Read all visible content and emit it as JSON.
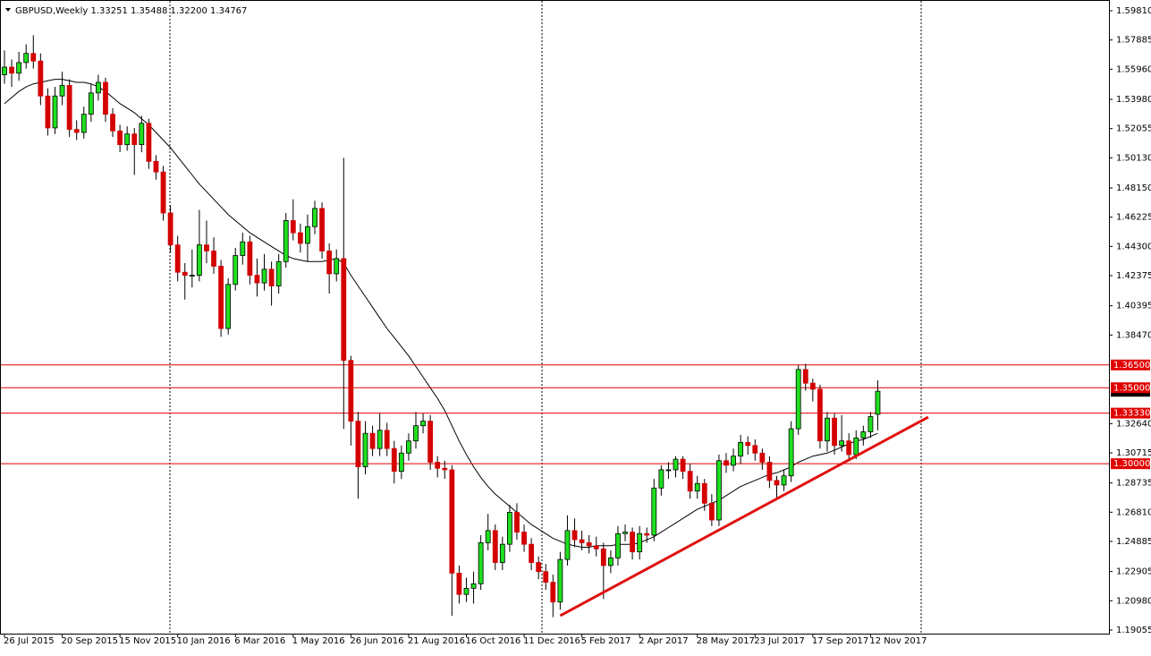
{
  "chart_data": {
    "type": "candlestick",
    "header": "GBPUSD,Weekly  1.33251 1.35488 1.32200 1.34767",
    "categories": [
      "26 Jul 2015",
      null,
      null,
      null,
      null,
      null,
      null,
      null,
      "20 Sep 2015",
      null,
      null,
      null,
      null,
      null,
      null,
      null,
      "15 Nov 2015",
      null,
      null,
      null,
      null,
      null,
      null,
      null,
      "10 Jan 2016",
      null,
      null,
      null,
      null,
      null,
      null,
      null,
      "6 Mar 2016",
      null,
      null,
      null,
      null,
      null,
      null,
      null,
      "1 May 2016",
      null,
      null,
      null,
      null,
      null,
      null,
      null,
      "26 Jun 2016",
      null,
      null,
      null,
      null,
      null,
      null,
      null,
      "21 Aug 2016",
      null,
      null,
      null,
      null,
      null,
      null,
      null,
      "16 Oct 2016",
      null,
      null,
      null,
      null,
      null,
      null,
      null,
      "11 Dec 2016",
      null,
      null,
      null,
      null,
      null,
      null,
      null,
      "5 Feb 2017",
      null,
      null,
      null,
      null,
      null,
      null,
      null,
      "2 Apr 2017",
      null,
      null,
      null,
      null,
      null,
      null,
      null,
      "28 May 2017",
      null,
      null,
      null,
      null,
      null,
      null,
      null,
      "23 Jul 2017",
      null,
      null,
      null,
      null,
      null,
      null,
      null,
      "17 Sep 2017",
      null,
      null,
      null,
      null,
      null,
      null,
      null,
      "12 Nov 2017",
      null
    ],
    "ohlc": [
      [
        1.556,
        1.572,
        1.55,
        1.561
      ],
      [
        1.561,
        1.566,
        1.548,
        1.557
      ],
      [
        1.557,
        1.571,
        1.552,
        1.564
      ],
      [
        1.564,
        1.576,
        1.56,
        1.57
      ],
      [
        1.57,
        1.582,
        1.56,
        1.565
      ],
      [
        1.565,
        1.57,
        1.536,
        1.542
      ],
      [
        1.542,
        1.547,
        1.516,
        1.521
      ],
      [
        1.521,
        1.548,
        1.517,
        1.542
      ],
      [
        1.542,
        1.558,
        1.536,
        1.549
      ],
      [
        1.549,
        1.553,
        1.515,
        1.52
      ],
      [
        1.52,
        1.526,
        1.513,
        1.518
      ],
      [
        1.518,
        1.535,
        1.514,
        1.53
      ],
      [
        1.53,
        1.55,
        1.525,
        1.544
      ],
      [
        1.544,
        1.556,
        1.539,
        1.551
      ],
      [
        1.551,
        1.554,
        1.525,
        1.53
      ],
      [
        1.53,
        1.534,
        1.515,
        1.519
      ],
      [
        1.519,
        1.523,
        1.505,
        1.51
      ],
      [
        1.51,
        1.522,
        1.506,
        1.517
      ],
      [
        1.517,
        1.521,
        1.49,
        1.51
      ],
      [
        1.51,
        1.529,
        1.505,
        1.524
      ],
      [
        1.524,
        1.527,
        1.494,
        1.499
      ],
      [
        1.499,
        1.503,
        1.487,
        1.492
      ],
      [
        1.492,
        1.496,
        1.46,
        1.465
      ],
      [
        1.465,
        1.47,
        1.439,
        1.444
      ],
      [
        1.444,
        1.45,
        1.42,
        1.426
      ],
      [
        1.426,
        1.432,
        1.408,
        1.424
      ],
      [
        1.424,
        1.441,
        1.416,
        1.424
      ],
      [
        1.424,
        1.467,
        1.42,
        1.444
      ],
      [
        1.444,
        1.46,
        1.432,
        1.44
      ],
      [
        1.44,
        1.449,
        1.425,
        1.43
      ],
      [
        1.43,
        1.434,
        1.3835,
        1.389
      ],
      [
        1.389,
        1.422,
        1.385,
        1.418
      ],
      [
        1.418,
        1.442,
        1.414,
        1.437
      ],
      [
        1.437,
        1.452,
        1.431,
        1.446
      ],
      [
        1.446,
        1.45,
        1.418,
        1.424
      ],
      [
        1.424,
        1.435,
        1.41,
        1.419
      ],
      [
        1.419,
        1.438,
        1.414,
        1.428
      ],
      [
        1.428,
        1.433,
        1.404,
        1.417
      ],
      [
        1.417,
        1.438,
        1.412,
        1.433
      ],
      [
        1.433,
        1.465,
        1.429,
        1.46
      ],
      [
        1.46,
        1.474,
        1.447,
        1.452
      ],
      [
        1.452,
        1.458,
        1.439,
        1.445
      ],
      [
        1.445,
        1.464,
        1.433,
        1.456
      ],
      [
        1.456,
        1.473,
        1.451,
        1.468
      ],
      [
        1.468,
        1.472,
        1.435,
        1.44
      ],
      [
        1.44,
        1.445,
        1.412,
        1.425
      ],
      [
        1.425,
        1.441,
        1.42,
        1.435
      ],
      [
        1.435,
        1.5013,
        1.3229,
        1.368
      ],
      [
        1.368,
        1.371,
        1.312,
        1.328
      ],
      [
        1.328,
        1.334,
        1.277,
        1.298
      ],
      [
        1.298,
        1.328,
        1.293,
        1.32
      ],
      [
        1.32,
        1.325,
        1.305,
        1.31
      ],
      [
        1.31,
        1.333,
        1.305,
        1.322
      ],
      [
        1.322,
        1.327,
        1.305,
        1.31
      ],
      [
        1.31,
        1.315,
        1.287,
        1.295
      ],
      [
        1.295,
        1.312,
        1.29,
        1.307
      ],
      [
        1.307,
        1.32,
        1.302,
        1.315
      ],
      [
        1.315,
        1.334,
        1.31,
        1.325
      ],
      [
        1.325,
        1.333,
        1.32,
        1.328
      ],
      [
        1.328,
        1.332,
        1.296,
        1.301
      ],
      [
        1.301,
        1.305,
        1.291,
        1.297
      ],
      [
        1.297,
        1.302,
        1.29,
        1.296
      ],
      [
        1.296,
        1.299,
        1.2,
        1.228
      ],
      [
        1.228,
        1.233,
        1.208,
        1.214
      ],
      [
        1.214,
        1.225,
        1.209,
        1.218
      ],
      [
        1.218,
        1.229,
        1.208,
        1.221
      ],
      [
        1.221,
        1.253,
        1.217,
        1.248
      ],
      [
        1.248,
        1.267,
        1.243,
        1.256
      ],
      [
        1.256,
        1.26,
        1.23,
        1.235
      ],
      [
        1.235,
        1.252,
        1.23,
        1.247
      ],
      [
        1.247,
        1.273,
        1.242,
        1.268
      ],
      [
        1.268,
        1.274,
        1.25,
        1.255
      ],
      [
        1.255,
        1.26,
        1.242,
        1.247
      ],
      [
        1.247,
        1.251,
        1.23,
        1.235
      ],
      [
        1.235,
        1.239,
        1.224,
        1.229
      ],
      [
        1.229,
        1.234,
        1.217,
        1.222
      ],
      [
        1.222,
        1.227,
        1.199,
        1.209
      ],
      [
        1.209,
        1.242,
        1.204,
        1.237
      ],
      [
        1.237,
        1.266,
        1.233,
        1.256
      ],
      [
        1.256,
        1.264,
        1.245,
        1.25
      ],
      [
        1.25,
        1.256,
        1.243,
        1.248
      ],
      [
        1.248,
        1.253,
        1.241,
        1.246
      ],
      [
        1.246,
        1.252,
        1.239,
        1.244
      ],
      [
        1.244,
        1.248,
        1.211,
        1.233
      ],
      [
        1.233,
        1.243,
        1.228,
        1.238
      ],
      [
        1.238,
        1.259,
        1.233,
        1.254
      ],
      [
        1.254,
        1.26,
        1.249,
        1.255
      ],
      [
        1.255,
        1.258,
        1.237,
        1.242
      ],
      [
        1.242,
        1.259,
        1.237,
        1.254
      ],
      [
        1.254,
        1.258,
        1.248,
        1.253
      ],
      [
        1.253,
        1.29,
        1.249,
        1.284
      ],
      [
        1.284,
        1.299,
        1.279,
        1.296
      ],
      [
        1.296,
        1.301,
        1.29,
        1.296
      ],
      [
        1.296,
        1.305,
        1.291,
        1.303
      ],
      [
        1.303,
        1.305,
        1.29,
        1.295
      ],
      [
        1.295,
        1.3,
        1.277,
        1.282
      ],
      [
        1.282,
        1.292,
        1.277,
        1.287
      ],
      [
        1.287,
        1.29,
        1.269,
        1.274
      ],
      [
        1.274,
        1.28,
        1.259,
        1.263
      ],
      [
        1.263,
        1.306,
        1.259,
        1.302
      ],
      [
        1.302,
        1.307,
        1.294,
        1.299
      ],
      [
        1.299,
        1.31,
        1.295,
        1.305
      ],
      [
        1.305,
        1.319,
        1.3,
        1.314
      ],
      [
        1.314,
        1.318,
        1.306,
        1.312
      ],
      [
        1.312,
        1.316,
        1.302,
        1.307
      ],
      [
        1.307,
        1.31,
        1.296,
        1.301
      ],
      [
        1.301,
        1.305,
        1.284,
        1.289
      ],
      [
        1.289,
        1.292,
        1.277,
        1.286
      ],
      [
        1.286,
        1.296,
        1.282,
        1.292
      ],
      [
        1.292,
        1.328,
        1.288,
        1.323
      ],
      [
        1.323,
        1.365,
        1.319,
        1.362
      ],
      [
        1.362,
        1.3657,
        1.348,
        1.353
      ],
      [
        1.353,
        1.356,
        1.341,
        1.349
      ],
      [
        1.349,
        1.352,
        1.31,
        1.315
      ],
      [
        1.315,
        1.334,
        1.308,
        1.33
      ],
      [
        1.33,
        1.333,
        1.306,
        1.312
      ],
      [
        1.312,
        1.332,
        1.308,
        1.315
      ],
      [
        1.315,
        1.32,
        1.303,
        1.306
      ],
      [
        1.306,
        1.322,
        1.303,
        1.317
      ],
      [
        1.317,
        1.325,
        1.312,
        1.321
      ],
      [
        1.321,
        1.334,
        1.317,
        1.331
      ],
      [
        1.33251,
        1.35488,
        1.322,
        1.34767
      ]
    ],
    "ma": [
      1.537,
      1.541,
      1.545,
      1.548,
      1.55,
      1.551,
      1.552,
      1.553,
      1.553,
      1.552,
      1.551,
      1.551,
      1.55,
      1.548,
      1.545,
      1.541,
      1.537,
      1.534,
      1.531,
      1.527,
      1.523,
      1.518,
      1.513,
      1.508,
      1.502,
      1.496,
      1.49,
      1.484,
      1.479,
      1.474,
      1.469,
      1.464,
      1.46,
      1.456,
      1.452,
      1.449,
      1.446,
      1.443,
      1.44,
      1.437,
      1.435,
      1.434,
      1.433,
      1.433,
      1.433,
      1.434,
      1.435,
      1.432,
      1.424,
      1.417,
      1.41,
      1.403,
      1.396,
      1.389,
      1.383,
      1.377,
      1.371,
      1.364,
      1.357,
      1.35,
      1.343,
      1.335,
      1.325,
      1.315,
      1.306,
      1.298,
      1.291,
      1.285,
      1.28,
      1.276,
      1.272,
      1.268,
      1.264,
      1.26,
      1.257,
      1.254,
      1.251,
      1.249,
      1.247,
      1.246,
      1.245,
      1.245,
      1.246,
      1.246,
      1.246,
      1.247,
      1.247,
      1.247,
      1.248,
      1.25,
      1.252,
      1.255,
      1.258,
      1.261,
      1.264,
      1.267,
      1.27,
      1.272,
      1.274,
      1.276,
      1.279,
      1.282,
      1.285,
      1.287,
      1.289,
      1.291,
      1.293,
      1.294,
      1.296,
      1.298,
      1.301,
      1.303,
      1.305,
      1.306,
      1.307,
      1.309,
      1.311,
      1.313,
      1.315,
      1.316,
      1.318,
      1.32
    ],
    "ylim": [
      1.19055,
      1.5981
    ],
    "yticks": [
      {
        "value": 1.5981,
        "label": "1.59810"
      },
      1.57885,
      {
        "value": 1.5596,
        "label": "1.55960"
      },
      {
        "value": 1.5398,
        "label": "1.53980"
      },
      1.52055,
      {
        "value": 1.5013,
        "label": "1.50130"
      },
      {
        "value": 1.4815,
        "label": "1.48150"
      },
      1.46225,
      {
        "value": 1.443,
        "label": "1.44300"
      },
      1.42375,
      1.40395,
      {
        "value": 1.3847,
        "label": "1.38470"
      },
      {
        "value": 1.3264,
        "label": "1.32640"
      },
      1.30715,
      1.28735,
      {
        "value": 1.2681,
        "label": "1.26810"
      },
      1.24885,
      1.22905,
      {
        "value": 1.2098,
        "label": "1.20980"
      },
      1.19055
    ],
    "levels": [
      {
        "value": 1.365,
        "label": "1.36500"
      },
      {
        "value": 1.35,
        "label": "1.35000"
      },
      {
        "value": 1.3333,
        "label": "1.33330"
      },
      {
        "value": 1.3,
        "label": "1.30000"
      }
    ],
    "trendline": {
      "x": [
        77,
        128
      ],
      "y": [
        1.2,
        1.3307
      ]
    },
    "colors": {
      "up": "#1ee01e",
      "down": "#d40000",
      "level": "#e00000",
      "trend": "#e01010",
      "ma": "#000000"
    }
  }
}
